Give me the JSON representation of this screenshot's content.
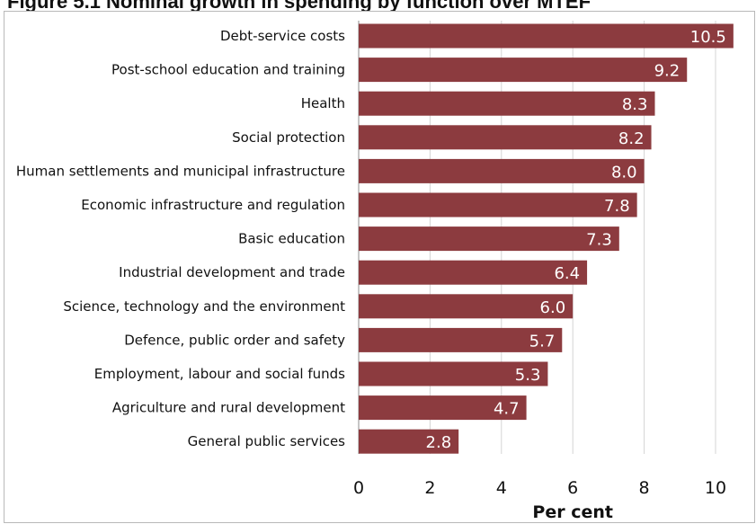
{
  "figure": {
    "title": "Figure 5.1 Nominal growth in spending by function over MTEF"
  },
  "chart_data": {
    "type": "bar",
    "orientation": "horizontal",
    "categories": [
      "Debt-service costs",
      "Post-school education and training",
      "Health",
      "Social protection",
      "Human settlements and municipal infrastructure",
      "Economic infrastructure and regulation",
      "Basic education",
      "Industrial development and trade",
      "Science, technology and the environment",
      "Defence, public order and safety",
      "Employment, labour and social funds",
      "Agriculture and rural development",
      "General public services"
    ],
    "values": [
      10.5,
      9.2,
      8.3,
      8.2,
      8.0,
      7.8,
      7.3,
      6.4,
      6.0,
      5.7,
      5.3,
      4.7,
      2.8
    ],
    "data_labels": [
      "10.5",
      "9.2",
      "8.3",
      "8.2",
      "8.0",
      "7.8",
      "7.3",
      "6.4",
      "6.0",
      "5.7",
      "5.3",
      "4.7",
      "2.8"
    ],
    "xlabel": "Per cent",
    "ylabel": "",
    "xlim": [
      0,
      11
    ],
    "xticks": [
      0,
      2,
      4,
      6,
      8,
      10
    ],
    "tick_labels": [
      "0",
      "2",
      "4",
      "6",
      "8",
      "10"
    ],
    "grid": "vertical",
    "legend": "none",
    "colors": {
      "bar": "#8c3b3f",
      "grid": "#d4d4d4",
      "text": "#111111",
      "value_text": "#ffffff"
    }
  }
}
